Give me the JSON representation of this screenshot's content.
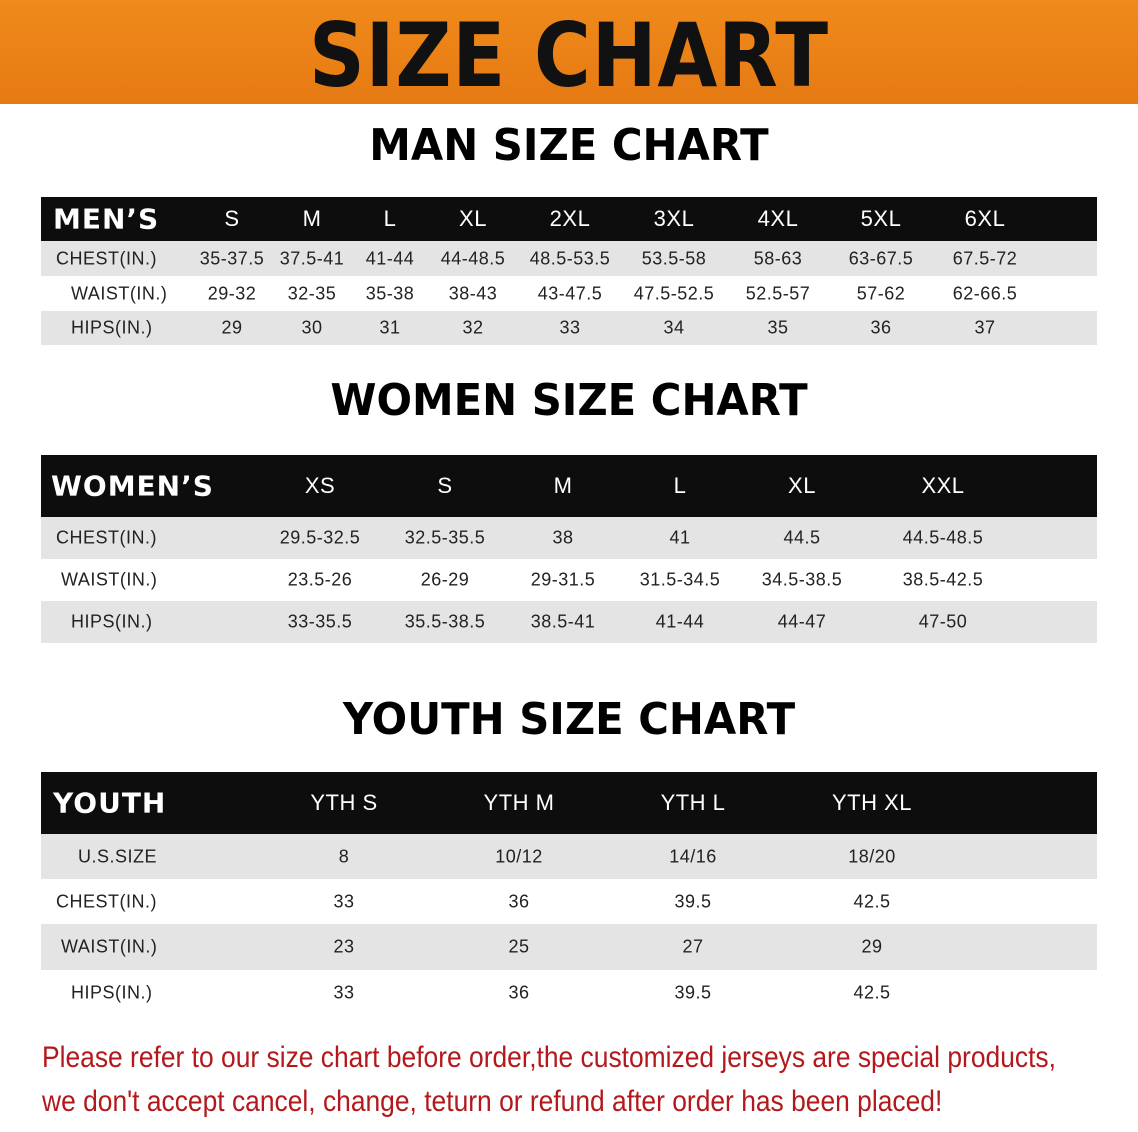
{
  "banner_title": "SIZE CHART",
  "colors": {
    "banner": "#ee861a",
    "header_row": "#0d0d0d",
    "stripe": "#e4e4e4",
    "note": "#b3191c"
  },
  "men": {
    "title": "MAN SIZE CHART",
    "header": {
      "label": "MEN’S",
      "cells": [
        "S",
        "M",
        "L",
        "XL",
        "2XL",
        "3XL",
        "4XL",
        "5XL",
        "6XL"
      ]
    },
    "rows": [
      {
        "label": "CHEST(IN.)",
        "cells": [
          "35-37.5",
          "37.5-41",
          "41-44",
          "44-48.5",
          "48.5-53.5",
          "53.5-58",
          "58-63",
          "63-67.5",
          "67.5-72"
        ]
      },
      {
        "label": "WAIST(IN.)",
        "cells": [
          "29-32",
          "32-35",
          "35-38",
          "38-43",
          "43-47.5",
          "47.5-52.5",
          "52.5-57",
          "57-62",
          "62-66.5"
        ]
      },
      {
        "label": "HIPS(IN.)",
        "cells": [
          "29",
          "30",
          "31",
          "32",
          "33",
          "34",
          "35",
          "36",
          "37"
        ]
      }
    ]
  },
  "women": {
    "title": "WOMEN SIZE CHART",
    "header": {
      "label": "WOMEN’S",
      "cells": [
        "XS",
        "S",
        "M",
        "L",
        "XL",
        "XXL"
      ]
    },
    "rows": [
      {
        "label": "CHEST(IN.)",
        "cells": [
          "29.5-32.5",
          "32.5-35.5",
          "38",
          "41",
          "44.5",
          "44.5-48.5"
        ]
      },
      {
        "label": "WAIST(IN.)",
        "cells": [
          "23.5-26",
          "26-29",
          "29-31.5",
          "31.5-34.5",
          "34.5-38.5",
          "38.5-42.5"
        ]
      },
      {
        "label": "HIPS(IN.)",
        "cells": [
          "33-35.5",
          "35.5-38.5",
          "38.5-41",
          "41-44",
          "44-47",
          "47-50"
        ]
      }
    ]
  },
  "youth": {
    "title": "YOUTH SIZE CHART",
    "header": {
      "label": "YOUTH",
      "cells": [
        "YTH S",
        "YTH M",
        "YTH L",
        "YTH XL"
      ]
    },
    "rows": [
      {
        "label": "U.S.SIZE",
        "cells": [
          "8",
          "10/12",
          "14/16",
          "18/20"
        ]
      },
      {
        "label": "CHEST(IN.)",
        "cells": [
          "33",
          "36",
          "39.5",
          "42.5"
        ]
      },
      {
        "label": "WAIST(IN.)",
        "cells": [
          "23",
          "25",
          "27",
          "29"
        ]
      },
      {
        "label": "HIPS(IN.)",
        "cells": [
          "33",
          "36",
          "39.5",
          "42.5"
        ]
      }
    ]
  },
  "note": {
    "line1": "Please refer to our size chart before order,the customized jerseys are special products,",
    "line2": "we don't accept cancel, change, teturn or refund after order has been placed!"
  }
}
